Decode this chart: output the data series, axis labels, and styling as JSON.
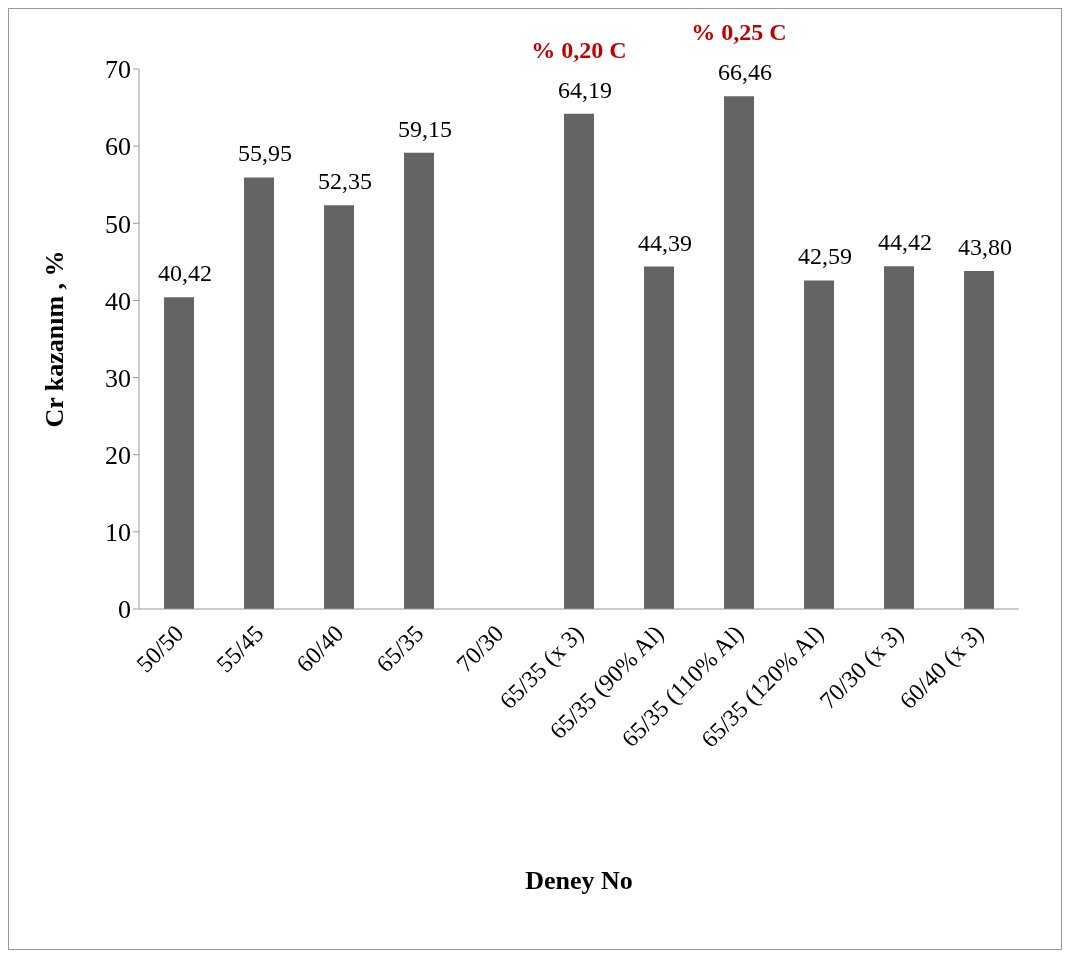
{
  "chart_data": {
    "type": "bar",
    "xlabel": "Deney No",
    "ylabel": "Cr kazanım , %",
    "categories": [
      "50/50",
      "55/45",
      "60/40",
      "65/35",
      "70/30",
      "65/35 (x 3)",
      "65/35 (90% Al)",
      "65/35 (110% Al)",
      "65/35 (120% Al)",
      "70/30 (x 3)",
      "60/40 (x 3)"
    ],
    "values": [
      40.42,
      55.95,
      52.35,
      59.15,
      null,
      64.19,
      44.39,
      66.46,
      42.59,
      44.42,
      43.8
    ],
    "value_labels": [
      "40,42",
      "55,95",
      "52,35",
      "59,15",
      null,
      "64,19",
      "44,39",
      "66,46",
      "42,59",
      "44,42",
      "43,80"
    ],
    "color": "#646464",
    "ylim": [
      0,
      70
    ],
    "yticks": [
      0,
      10,
      20,
      30,
      40,
      50,
      60,
      70
    ],
    "grid": false,
    "legend": false,
    "annotations": [
      {
        "text": "% 0,20 C",
        "x": "65/35 (x 3)",
        "y": 64.19
      },
      {
        "text": "% 0,25 C",
        "x": "65/35 (110% Al)",
        "y": 66.46
      }
    ]
  }
}
